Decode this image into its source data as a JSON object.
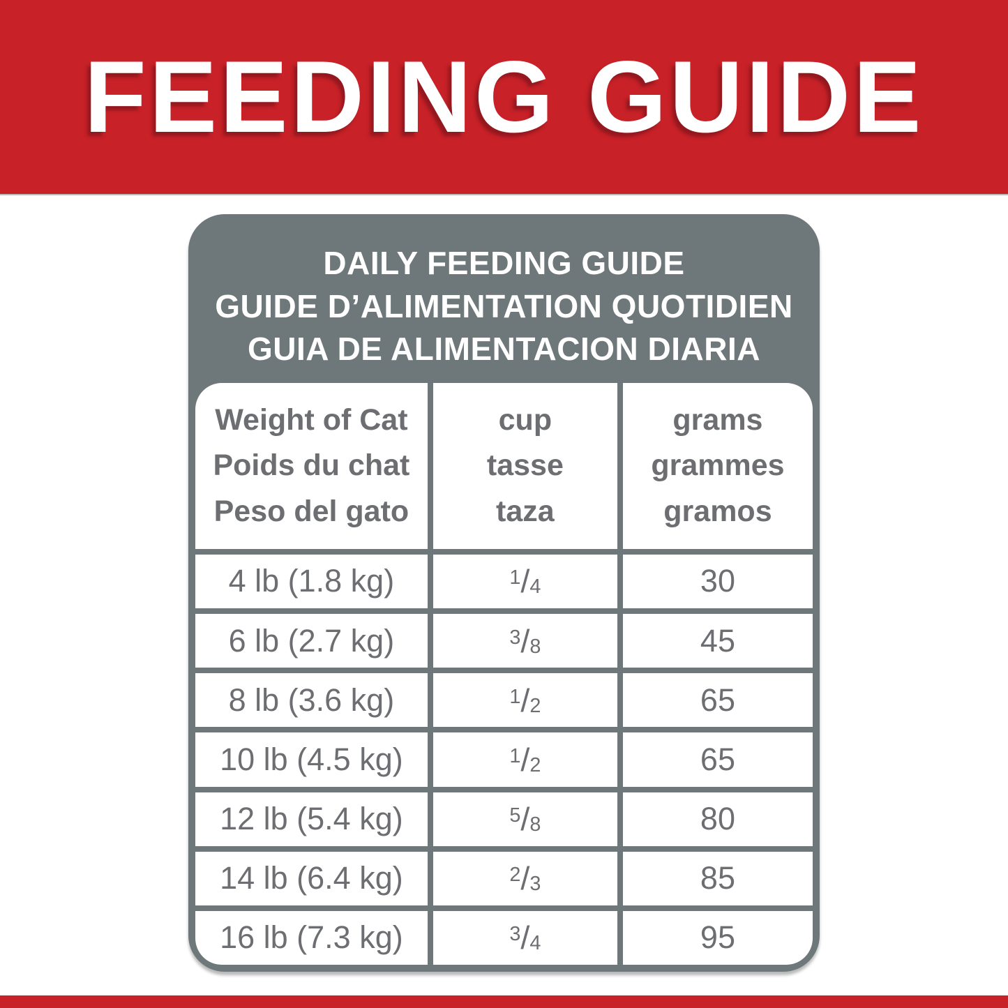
{
  "banner": {
    "text": "FEEDING GUIDE",
    "bg_color": "#c82128",
    "text_color": "#ffffff"
  },
  "panel": {
    "bg_color": "#6e777a",
    "title_lines": [
      "DAILY FEEDING GUIDE",
      "GUIDE D’ALIMENTATION QUOTIDIEN",
      "GUIA DE ALIMENTACION DIARIA"
    ]
  },
  "table": {
    "text_color": "#6d6e71",
    "cell_bg_color": "#ffffff",
    "columns": [
      {
        "lines": [
          "Weight of Cat",
          "Poids du chat",
          "Peso del gato"
        ]
      },
      {
        "lines": [
          "cup",
          "tasse",
          "taza"
        ]
      },
      {
        "lines": [
          "grams",
          "grammes",
          "gramos"
        ]
      }
    ],
    "rows": [
      {
        "weight": "4 lb (1.8 kg)",
        "cup_num": "1",
        "cup_den": "4",
        "grams": "30"
      },
      {
        "weight": "6 lb (2.7 kg)",
        "cup_num": "3",
        "cup_den": "8",
        "grams": "45"
      },
      {
        "weight": "8 lb (3.6 kg)",
        "cup_num": "1",
        "cup_den": "2",
        "grams": "65"
      },
      {
        "weight": "10 lb (4.5 kg)",
        "cup_num": "1",
        "cup_den": "2",
        "grams": "65"
      },
      {
        "weight": "12 lb (5.4 kg)",
        "cup_num": "5",
        "cup_den": "8",
        "grams": "80"
      },
      {
        "weight": "14 lb (6.4 kg)",
        "cup_num": "2",
        "cup_den": "3",
        "grams": "85"
      },
      {
        "weight": "16 lb (7.3 kg)",
        "cup_num": "3",
        "cup_den": "4",
        "grams": "95"
      }
    ]
  },
  "footer": {
    "bg_color": "#c82128"
  }
}
